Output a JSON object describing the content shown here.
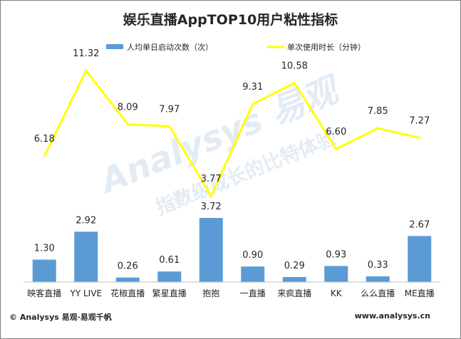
{
  "chart_data": {
    "type": "bar+line",
    "title": "娱乐直播AppTOP10用户粘性指标",
    "categories": [
      "映客直播",
      "YY LIVE",
      "花椒直播",
      "繁星直播",
      "抱抱",
      "一直播",
      "来疯直播",
      "KK",
      "么么直播",
      "ME直播"
    ],
    "series": [
      {
        "name": "人均单日启动次数（次）",
        "type": "bar",
        "color": "#5b9bd5",
        "values": [
          1.3,
          2.92,
          0.26,
          0.61,
          3.72,
          0.9,
          0.29,
          0.93,
          0.33,
          2.67
        ],
        "labels": [
          "1.30",
          "2.92",
          "0.26",
          "0.61",
          "3.72",
          "0.90",
          "0.29",
          "0.93",
          "0.33",
          "2.67"
        ]
      },
      {
        "name": "单次使用时长（分钟）",
        "type": "line",
        "color": "#ffff00",
        "values": [
          6.18,
          11.32,
          8.09,
          7.97,
          3.77,
          9.31,
          10.58,
          6.6,
          7.85,
          7.27
        ],
        "labels": [
          "6.18",
          "11.32",
          "8.09",
          "7.97",
          "3.77",
          "9.31",
          "10.58",
          "6.60",
          "7.85",
          "7.27"
        ]
      }
    ],
    "legend_position": "top",
    "grid": false
  },
  "watermark": {
    "brand": "Analysys 易观",
    "slogan": "指数级成长的比特体验"
  },
  "footer": {
    "left": "© Analysys 易观·易观千帆",
    "right": "www.analysys.cn"
  }
}
